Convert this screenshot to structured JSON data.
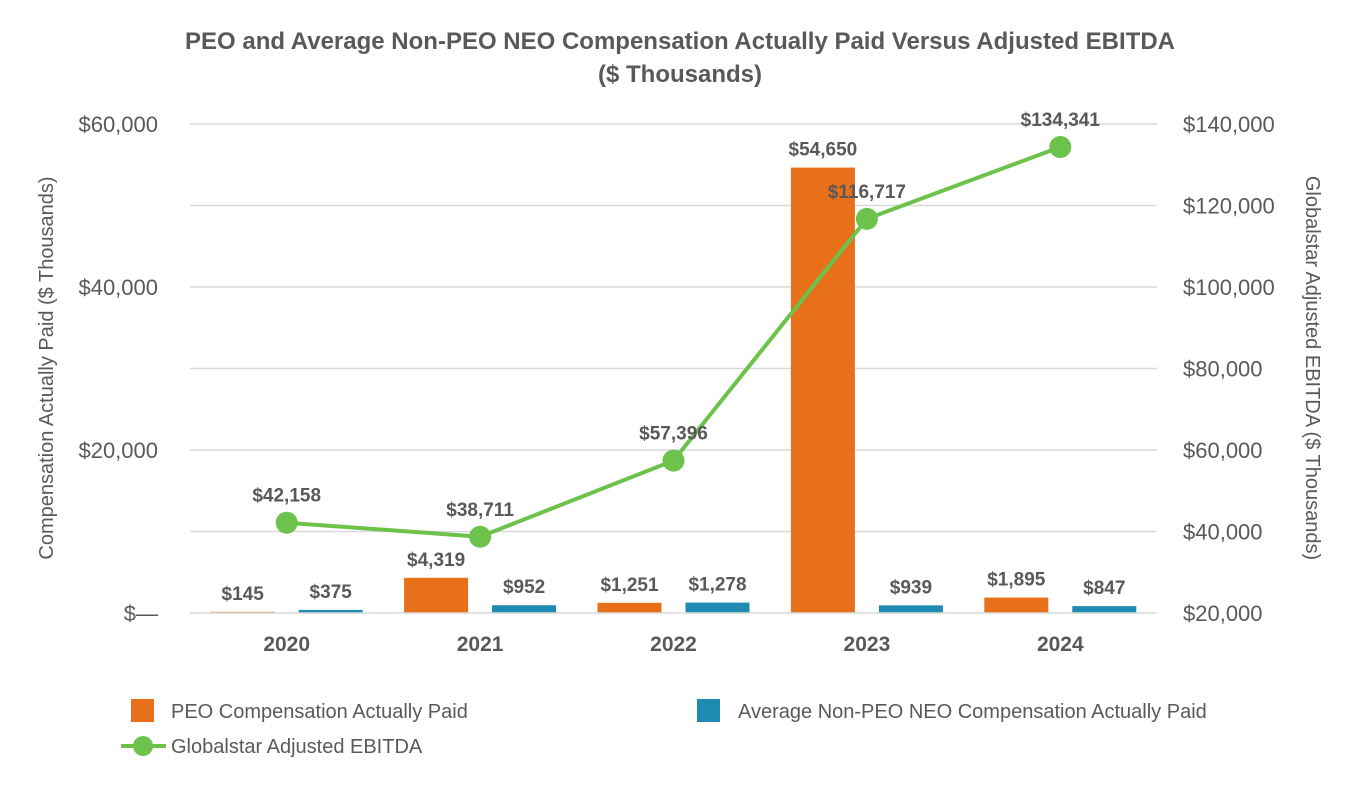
{
  "chart_data": {
    "type": "bar",
    "title": "PEO and Average Non-PEO NEO Compensation Actually Paid Versus Adjusted EBITDA",
    "subtitle": "($ Thousands)",
    "categories": [
      "2020",
      "2021",
      "2022",
      "2023",
      "2024"
    ],
    "ylabel": "Compensation Actually Paid ($ Thousands)",
    "y2label": "Globalstar Adjusted EBITDA ($ Thousands)",
    "ylim": [
      0,
      60000
    ],
    "y2lim": [
      20000,
      140000
    ],
    "yticks": [
      "$—",
      "$20,000",
      "$40,000",
      "$60,000"
    ],
    "y2ticks": [
      "$20,000",
      "$40,000",
      "$60,000",
      "$80,000",
      "$100,000",
      "$120,000",
      "$140,000"
    ],
    "grid": true,
    "legend_position": "bottom",
    "series": [
      {
        "name": "PEO Compensation Actually Paid",
        "type": "bar",
        "axis": "left",
        "color": "#e8701a",
        "values": [
          145,
          4319,
          1251,
          54650,
          1895
        ],
        "labels": [
          "$145",
          "$4,319",
          "$1,251",
          "$54,650",
          "$1,895"
        ]
      },
      {
        "name": "Average Non-PEO NEO Compensation Actually Paid",
        "type": "bar",
        "axis": "left",
        "color": "#1f8bb3",
        "values": [
          375,
          952,
          1278,
          939,
          847
        ],
        "labels": [
          "$375",
          "$952",
          "$1,278",
          "$939",
          "$847"
        ]
      },
      {
        "name": "Globalstar Adjusted EBITDA",
        "type": "line",
        "axis": "right",
        "color": "#6cc24a",
        "values": [
          42158,
          38711,
          57396,
          116717,
          134341
        ],
        "labels": [
          "$42,158",
          "$38,711",
          "$57,396",
          "$116,717",
          "$134,341"
        ]
      }
    ]
  }
}
